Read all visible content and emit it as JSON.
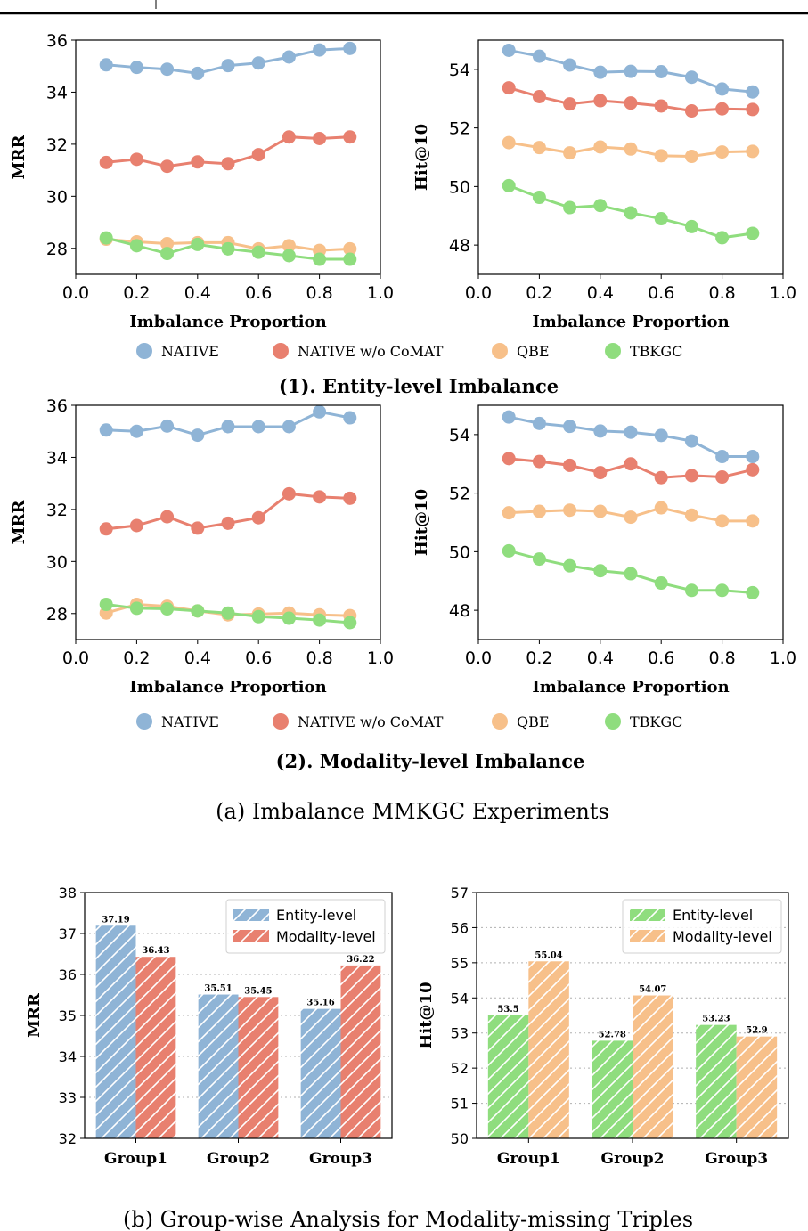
{
  "colors": {
    "native": "#8fb4d6",
    "native_wo_comat": "#e8806f",
    "qbe": "#f7c08a",
    "tbkgc": "#8fdd7e",
    "entity_level_left": "#8fb4d6",
    "modality_level_left": "#e8806f",
    "entity_level_right": "#8fdd7e",
    "modality_level_right": "#f7c08a"
  },
  "legend_lines": [
    "NATIVE",
    "NATIVE w/o CoMAT",
    "QBE",
    "TBKGC"
  ],
  "section_titles": {
    "entity": "(1). Entity-level Imbalance",
    "modality": "(2). Modality-level Imbalance"
  },
  "captions": {
    "a": "(a)  Imbalance MMKGC Experiments",
    "b": "(b)  Group-wise Analysis for Modality-missing Triples"
  },
  "chart_data": [
    {
      "id": "entity_mrr",
      "type": "line",
      "xlabel": "Imbalance Proportion",
      "ylabel": "MRR",
      "xlim": [
        0.0,
        1.0
      ],
      "ylim": [
        27,
        36
      ],
      "xticks": [
        "0.0",
        "0.2",
        "0.4",
        "0.6",
        "0.8",
        "1.0"
      ],
      "yticks": [
        28,
        30,
        32,
        34,
        36
      ],
      "x": [
        0.1,
        0.2,
        0.3,
        0.4,
        0.5,
        0.6,
        0.7,
        0.8,
        0.9
      ],
      "series": [
        {
          "name": "NATIVE",
          "values": [
            35.05,
            34.95,
            34.88,
            34.72,
            35.02,
            35.12,
            35.35,
            35.62,
            35.68
          ]
        },
        {
          "name": "NATIVE w/o CoMAT",
          "values": [
            31.3,
            31.42,
            31.15,
            31.32,
            31.25,
            31.6,
            32.28,
            32.22,
            32.28
          ]
        },
        {
          "name": "QBE",
          "values": [
            28.35,
            28.25,
            28.18,
            28.22,
            28.22,
            27.98,
            28.1,
            27.92,
            27.98
          ]
        },
        {
          "name": "TBKGC",
          "values": [
            28.4,
            28.1,
            27.8,
            28.15,
            27.98,
            27.85,
            27.72,
            27.58,
            27.58
          ]
        }
      ]
    },
    {
      "id": "entity_hit10",
      "type": "line",
      "xlabel": "Imbalance Proportion",
      "ylabel": "Hit@10",
      "xlim": [
        0.0,
        1.0
      ],
      "ylim": [
        47,
        55
      ],
      "xticks": [
        "0.0",
        "0.2",
        "0.4",
        "0.6",
        "0.8",
        "1.0"
      ],
      "yticks": [
        48,
        50,
        52,
        54
      ],
      "x": [
        0.1,
        0.2,
        0.3,
        0.4,
        0.5,
        0.6,
        0.7,
        0.8,
        0.9
      ],
      "series": [
        {
          "name": "NATIVE",
          "values": [
            54.65,
            54.45,
            54.15,
            53.9,
            53.93,
            53.92,
            53.73,
            53.33,
            53.23
          ]
        },
        {
          "name": "NATIVE w/o CoMAT",
          "values": [
            53.37,
            53.07,
            52.82,
            52.93,
            52.85,
            52.75,
            52.58,
            52.65,
            52.63
          ]
        },
        {
          "name": "QBE",
          "values": [
            51.5,
            51.33,
            51.15,
            51.35,
            51.28,
            51.05,
            51.03,
            51.18,
            51.2
          ]
        },
        {
          "name": "TBKGC",
          "values": [
            50.03,
            49.63,
            49.28,
            49.35,
            49.1,
            48.9,
            48.63,
            48.25,
            48.4
          ]
        }
      ]
    },
    {
      "id": "modality_mrr",
      "type": "line",
      "xlabel": "Imbalance Proportion",
      "ylabel": "MRR",
      "xlim": [
        0.0,
        1.0
      ],
      "ylim": [
        27,
        36
      ],
      "xticks": [
        "0.0",
        "0.2",
        "0.4",
        "0.6",
        "0.8",
        "1.0"
      ],
      "yticks": [
        28,
        30,
        32,
        34,
        36
      ],
      "x": [
        0.1,
        0.2,
        0.3,
        0.4,
        0.5,
        0.6,
        0.7,
        0.8,
        0.9
      ],
      "series": [
        {
          "name": "NATIVE",
          "values": [
            35.05,
            35.0,
            35.2,
            34.85,
            35.18,
            35.18,
            35.18,
            35.75,
            35.52
          ]
        },
        {
          "name": "NATIVE w/o CoMAT",
          "values": [
            31.25,
            31.38,
            31.72,
            31.28,
            31.47,
            31.68,
            32.6,
            32.48,
            32.43
          ]
        },
        {
          "name": "QBE",
          "values": [
            28.02,
            28.35,
            28.28,
            28.1,
            27.95,
            27.98,
            28.02,
            27.95,
            27.92
          ]
        },
        {
          "name": "TBKGC",
          "values": [
            28.35,
            28.2,
            28.18,
            28.1,
            28.02,
            27.88,
            27.82,
            27.75,
            27.65
          ]
        }
      ]
    },
    {
      "id": "modality_hit10",
      "type": "line",
      "xlabel": "Imbalance Proportion",
      "ylabel": "Hit@10",
      "xlim": [
        0.0,
        1.0
      ],
      "ylim": [
        47,
        55
      ],
      "xticks": [
        "0.0",
        "0.2",
        "0.4",
        "0.6",
        "0.8",
        "1.0"
      ],
      "yticks": [
        48,
        50,
        52,
        54
      ],
      "x": [
        0.1,
        0.2,
        0.3,
        0.4,
        0.5,
        0.6,
        0.7,
        0.8,
        0.9
      ],
      "series": [
        {
          "name": "NATIVE",
          "values": [
            54.6,
            54.38,
            54.28,
            54.12,
            54.08,
            53.97,
            53.78,
            53.25,
            53.25
          ]
        },
        {
          "name": "NATIVE w/o CoMAT",
          "values": [
            53.18,
            53.08,
            52.95,
            52.7,
            53.0,
            52.53,
            52.6,
            52.55,
            52.8
          ]
        },
        {
          "name": "QBE",
          "values": [
            51.33,
            51.38,
            51.42,
            51.38,
            51.18,
            51.5,
            51.25,
            51.05,
            51.05
          ]
        },
        {
          "name": "TBKGC",
          "values": [
            50.03,
            49.75,
            49.52,
            49.35,
            49.25,
            48.93,
            48.68,
            48.68,
            48.6
          ]
        }
      ]
    },
    {
      "id": "group_mrr",
      "type": "bar",
      "ylabel": "MRR",
      "ylim": [
        32,
        38
      ],
      "yticks": [
        32,
        33,
        34,
        35,
        36,
        37,
        38
      ],
      "grid": true,
      "legend": "top-right",
      "categories": [
        "Group1",
        "Group2",
        "Group3"
      ],
      "series": [
        {
          "name": "Entity-level",
          "values": [
            37.19,
            35.51,
            35.16
          ]
        },
        {
          "name": "Modality-level",
          "values": [
            36.43,
            35.45,
            36.22
          ]
        }
      ],
      "data_labels": [
        [
          "37.19",
          "35.51",
          "35.16"
        ],
        [
          "36.43",
          "35.45",
          "36.22"
        ]
      ]
    },
    {
      "id": "group_hit10",
      "type": "bar",
      "ylabel": "Hit@10",
      "ylim": [
        50,
        57
      ],
      "yticks": [
        50,
        51,
        52,
        53,
        54,
        55,
        56,
        57
      ],
      "grid": true,
      "legend": "top-right",
      "categories": [
        "Group1",
        "Group2",
        "Group3"
      ],
      "series": [
        {
          "name": "Entity-level",
          "values": [
            53.5,
            52.78,
            53.23
          ]
        },
        {
          "name": "Modality-level",
          "values": [
            55.04,
            54.07,
            52.9
          ]
        }
      ],
      "data_labels": [
        [
          "53.5",
          "52.78",
          "53.23"
        ],
        [
          "55.04",
          "54.07",
          "52.9"
        ]
      ]
    }
  ]
}
